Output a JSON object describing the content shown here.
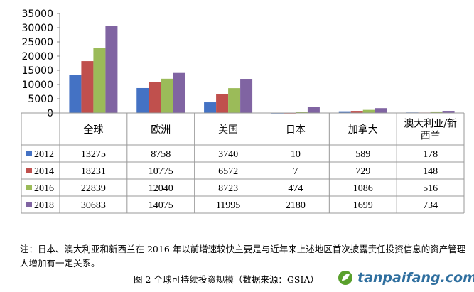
{
  "chart_data": {
    "type": "bar",
    "categories": [
      "全球",
      "欧洲",
      "美国",
      "日本",
      "加拿大",
      "澳大利亚/新西兰"
    ],
    "category_lines": [
      [
        "全球"
      ],
      [
        "欧洲"
      ],
      [
        "美国"
      ],
      [
        "日本"
      ],
      [
        "加拿大"
      ],
      [
        "澳大利亚/新",
        "西兰"
      ]
    ],
    "series": [
      {
        "name": "2012",
        "color": "#4472C4",
        "values": [
          13275,
          8758,
          3740,
          10,
          589,
          178
        ]
      },
      {
        "name": "2014",
        "color": "#C0504D",
        "values": [
          18231,
          10775,
          6572,
          7,
          729,
          148
        ]
      },
      {
        "name": "2016",
        "color": "#9BBB59",
        "values": [
          22839,
          12040,
          8723,
          474,
          1086,
          516
        ]
      },
      {
        "name": "2018",
        "color": "#8064A2",
        "values": [
          30683,
          14075,
          11995,
          2180,
          1699,
          734
        ]
      }
    ],
    "ylim": [
      0,
      35000
    ],
    "yticks": [
      0,
      5000,
      10000,
      15000,
      20000,
      25000,
      30000,
      35000
    ],
    "grid": false,
    "legend": "data-table"
  },
  "note": "注：日本、澳大利亚和新西兰在 2016 年以前增速较快主要是与近年来上述地区首次披露责任投资信息的资产管理人增加有一定关系。",
  "caption": "图 2 全球可持续投资规模（数据来源：GSIA）",
  "watermark": "tanpaifang.com"
}
